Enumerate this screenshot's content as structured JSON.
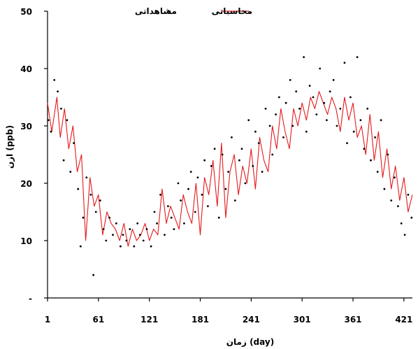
{
  "chart_data": {
    "type": "line",
    "xlabel": "زمان (day)",
    "ylabel": "ازن (ppb)",
    "xlim": [
      1,
      431
    ],
    "ylim": [
      0,
      50
    ],
    "x_ticks": [
      1,
      61,
      121,
      181,
      241,
      301,
      361,
      421
    ],
    "x_tick_labels": [
      "1",
      "61",
      "121",
      "181",
      "241",
      "301",
      "361",
      "421"
    ],
    "y_ticks": [
      0,
      10,
      20,
      30,
      40,
      50
    ],
    "y_tick_labels": [
      "-",
      "10",
      "20",
      "30",
      "40",
      "50"
    ],
    "legend": {
      "position": "top-center",
      "entries": [
        "محاسباتی",
        "مشاهداتی"
      ]
    },
    "series": [
      {
        "name": "محاسباتی",
        "style": "line",
        "color": "#e41a1c",
        "x": [
          1,
          6,
          12,
          16,
          21,
          26,
          31,
          36,
          41,
          46,
          51,
          56,
          61,
          66,
          71,
          76,
          81,
          86,
          91,
          96,
          101,
          106,
          111,
          116,
          121,
          126,
          131,
          136,
          141,
          146,
          151,
          156,
          161,
          166,
          171,
          176,
          181,
          186,
          191,
          196,
          201,
          206,
          211,
          216,
          221,
          226,
          231,
          236,
          241,
          246,
          251,
          256,
          261,
          266,
          271,
          276,
          281,
          286,
          291,
          296,
          301,
          306,
          311,
          316,
          321,
          326,
          331,
          336,
          341,
          346,
          351,
          356,
          361,
          366,
          371,
          376,
          381,
          386,
          391,
          396,
          401,
          406,
          411,
          416,
          421,
          426,
          431
        ],
        "y": [
          34,
          29,
          35,
          28,
          33,
          26,
          30,
          22,
          25,
          10,
          21,
          16,
          18,
          11,
          15,
          13,
          12,
          10,
          13,
          9,
          12,
          10,
          11,
          13,
          10,
          12,
          11,
          19,
          13,
          16,
          14,
          12,
          18,
          15,
          13,
          20,
          11,
          21,
          18,
          24,
          16,
          27,
          14,
          22,
          25,
          18,
          23,
          20,
          26,
          19,
          28,
          24,
          22,
          30,
          26,
          33,
          29,
          26,
          33,
          30,
          34,
          31,
          35,
          33,
          36,
          34,
          32,
          35,
          33,
          29,
          35,
          31,
          34,
          28,
          30,
          25,
          32,
          24,
          29,
          21,
          26,
          19,
          23,
          17,
          21,
          15,
          18
        ],
        "y_axis_index": 0
      },
      {
        "name": "مشاهداتی",
        "style": "scatter",
        "color": "#000000",
        "x": [
          2,
          5,
          9,
          13,
          17,
          20,
          24,
          28,
          32,
          37,
          40,
          43,
          47,
          52,
          55,
          58,
          63,
          67,
          70,
          74,
          78,
          82,
          87,
          90,
          94,
          98,
          103,
          107,
          110,
          114,
          118,
          123,
          127,
          130,
          134,
          139,
          143,
          147,
          150,
          155,
          158,
          162,
          167,
          170,
          175,
          178,
          183,
          186,
          190,
          194,
          198,
          203,
          207,
          211,
          214,
          218,
          222,
          227,
          230,
          234,
          238,
          243,
          246,
          250,
          254,
          258,
          263,
          266,
          270,
          274,
          279,
          282,
          287,
          290,
          294,
          298,
          303,
          306,
          310,
          314,
          318,
          322,
          327,
          330,
          334,
          338,
          342,
          346,
          351,
          354,
          358,
          362,
          366,
          370,
          374,
          378,
          382,
          387,
          390,
          394,
          398,
          402,
          406,
          410,
          414,
          418,
          422,
          426,
          430
        ],
        "y": [
          31,
          29,
          38,
          36,
          33,
          24,
          31,
          22,
          27,
          19,
          9,
          14,
          21,
          18,
          4,
          15,
          17,
          12,
          10,
          14,
          11,
          13,
          9,
          11,
          10,
          12,
          9,
          13,
          11,
          10,
          12,
          9,
          15,
          13,
          18,
          11,
          16,
          14,
          12,
          20,
          17,
          13,
          19,
          22,
          15,
          21,
          18,
          24,
          16,
          23,
          26,
          14,
          25,
          19,
          22,
          28,
          17,
          24,
          26,
          20,
          31,
          23,
          29,
          27,
          22,
          33,
          30,
          25,
          32,
          35,
          28,
          34,
          38,
          30,
          36,
          33,
          42,
          29,
          37,
          35,
          32,
          40,
          34,
          31,
          36,
          38,
          30,
          33,
          41,
          27,
          35,
          29,
          42,
          31,
          26,
          33,
          24,
          28,
          22,
          31,
          19,
          25,
          17,
          21,
          16,
          13,
          11,
          18,
          14
        ],
        "y_axis_index": 0
      }
    ]
  }
}
